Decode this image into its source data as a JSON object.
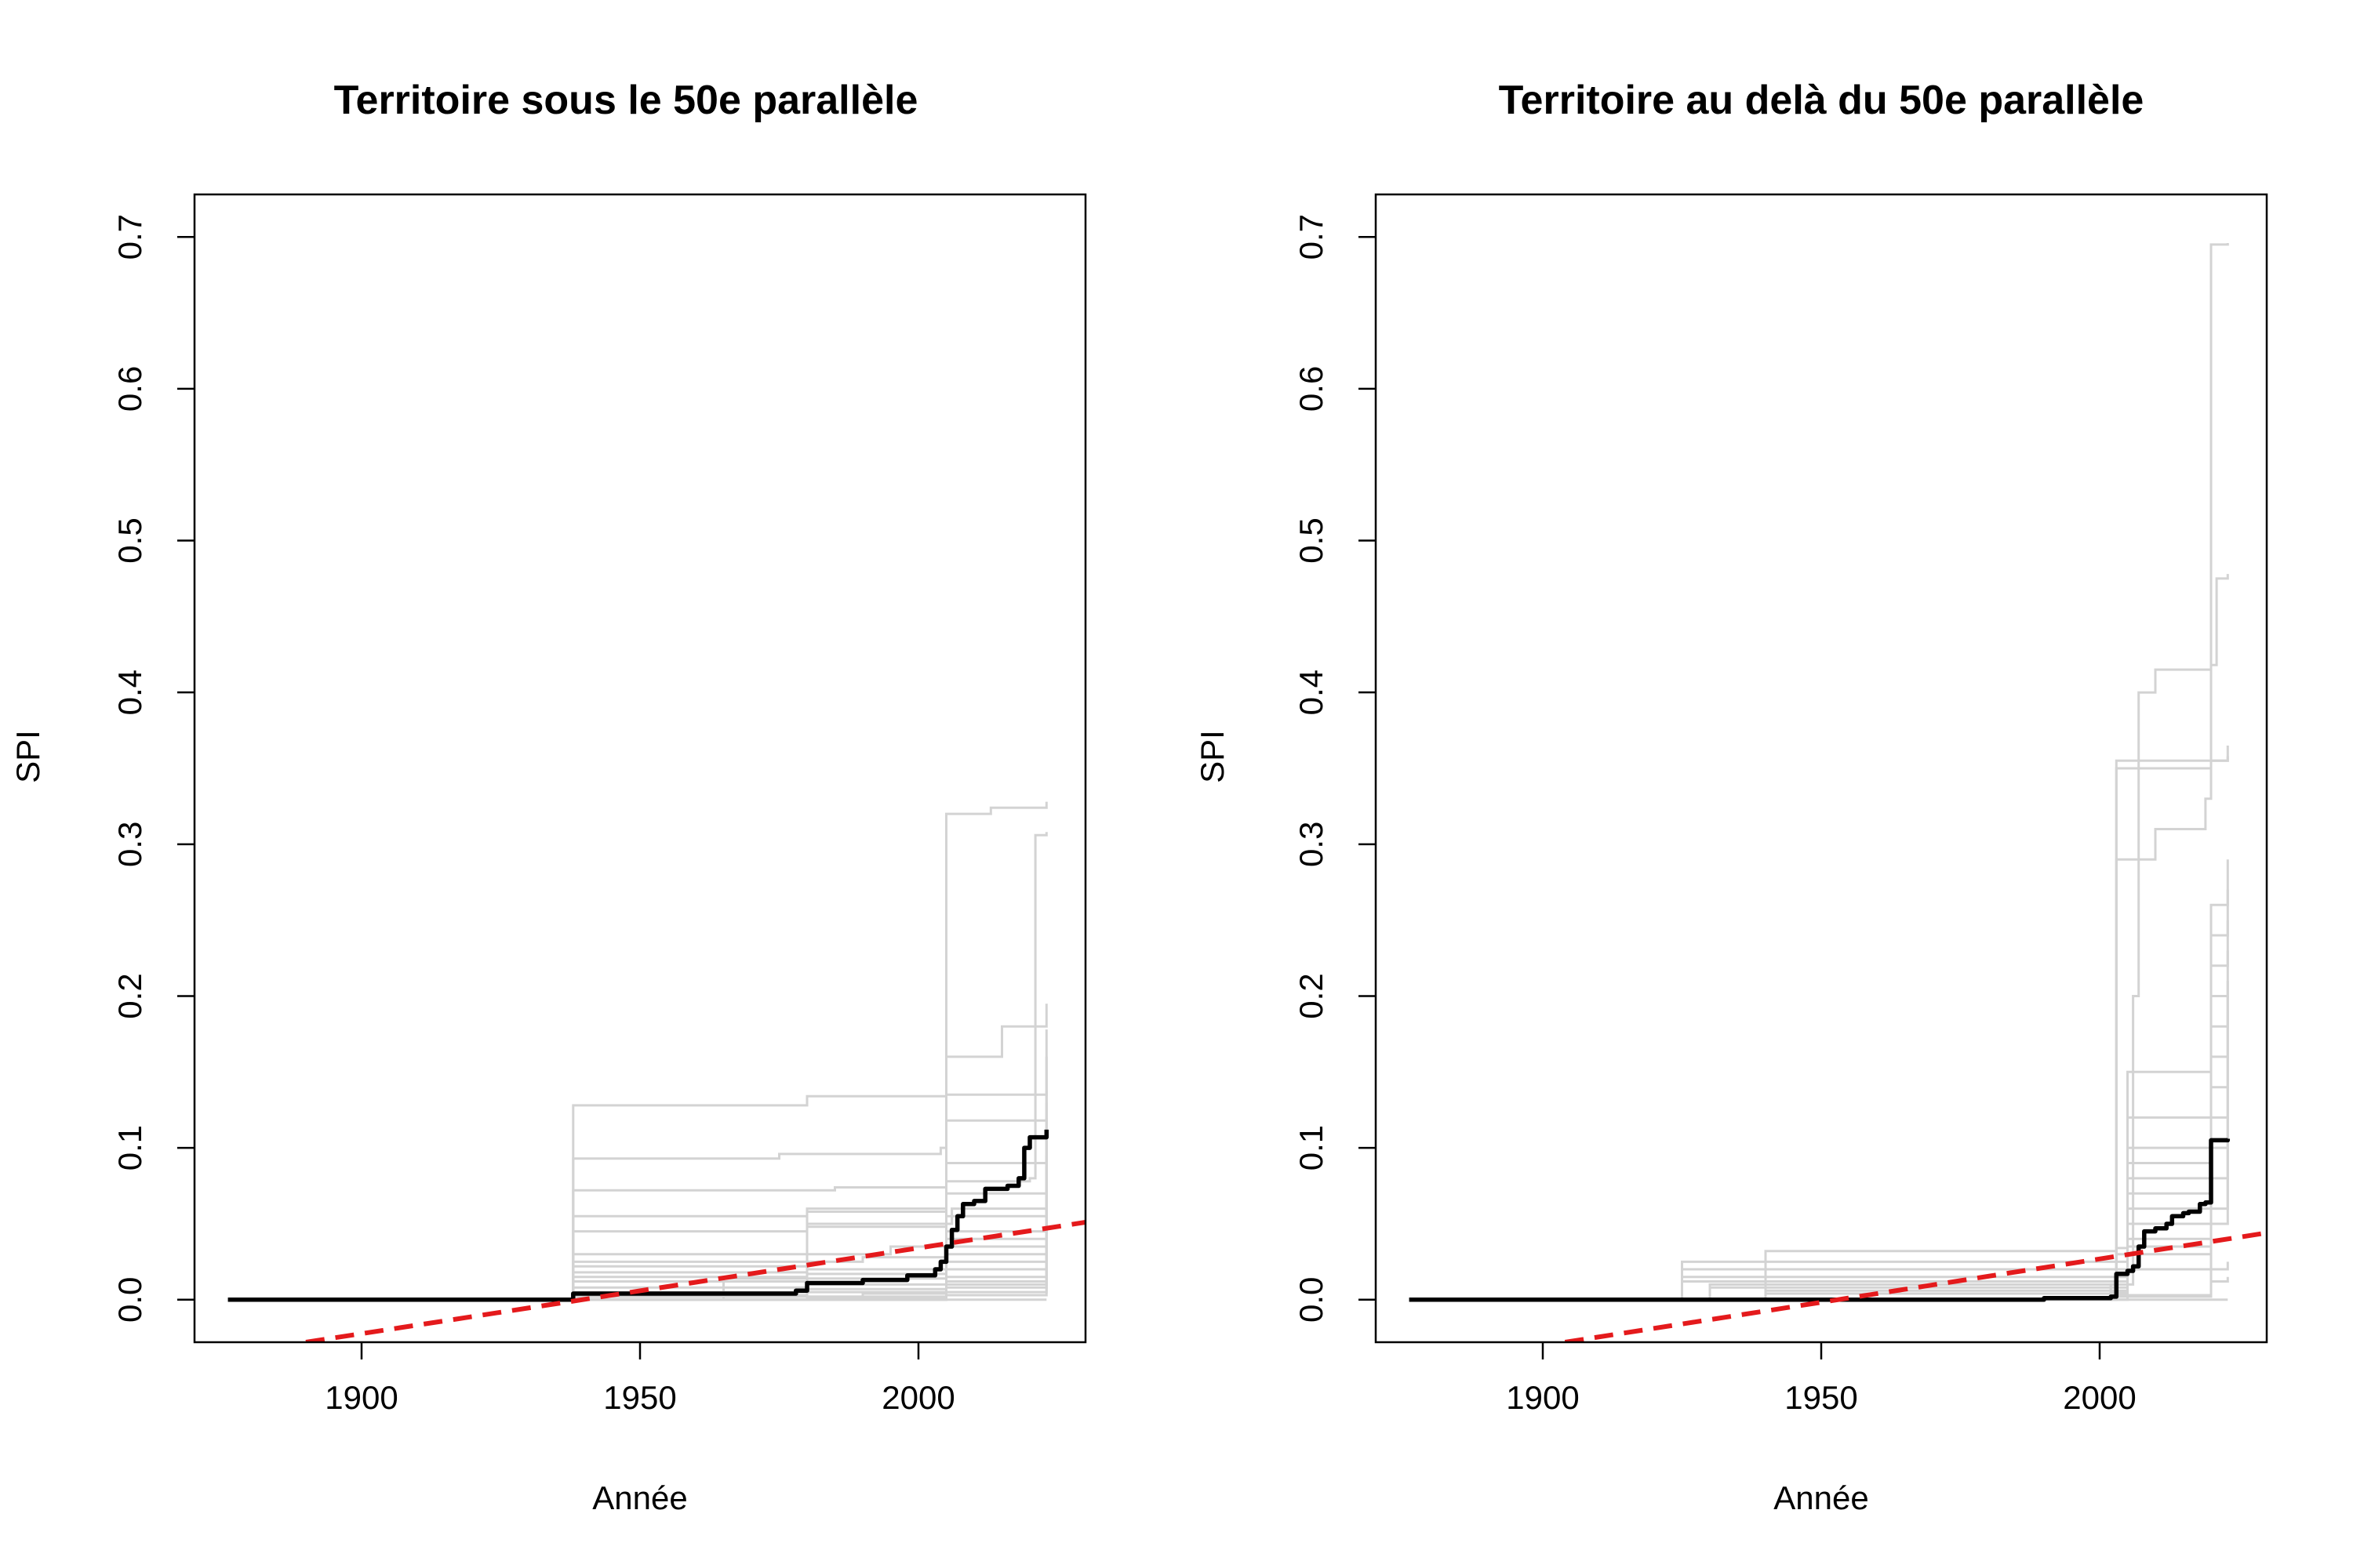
{
  "chart_data": [
    {
      "type": "line",
      "title": "Territoire sous le 50e parallèle",
      "xlabel": "Année",
      "ylabel": "SPI",
      "xlim": [
        1870,
        2030
      ],
      "ylim": [
        -0.028,
        0.728
      ],
      "xticks": [
        "1900",
        "1950",
        "2000"
      ],
      "yticks": [
        "0.0",
        "0.1",
        "0.2",
        "0.3",
        "0.4",
        "0.5",
        "0.6",
        "0.7"
      ],
      "grid": false,
      "colors": {
        "mean": "#000000",
        "trend": "#e41a1c",
        "members": "#d3d3d3"
      },
      "series": [
        {
          "role": "mean",
          "x": [
            1876,
            1937,
            1938,
            1960,
            1978,
            1980,
            1990,
            1998,
            2003,
            2004,
            2005,
            2006,
            2007,
            2008,
            2010,
            2012,
            2016,
            2018,
            2019,
            2020,
            2023
          ],
          "y": [
            0,
            0,
            0.004,
            0.004,
            0.006,
            0.011,
            0.013,
            0.016,
            0.02,
            0.025,
            0.035,
            0.046,
            0.055,
            0.063,
            0.065,
            0.073,
            0.075,
            0.08,
            0.1,
            0.107,
            0.112
          ]
        },
        {
          "role": "trend",
          "x": [
            1890,
            2030
          ],
          "y": [
            -0.028,
            0.051
          ]
        },
        {
          "role": "members",
          "lines": [
            {
              "x": [
                1876,
                1937,
                1938,
                1980,
                2005,
                2023
              ],
              "y": [
                0,
                0,
                0.128,
                0.134,
                0.135,
                0.138
              ]
            },
            {
              "x": [
                1876,
                1937,
                1938,
                1975,
                2004,
                2005,
                2013,
                2023
              ],
              "y": [
                0,
                0,
                0.093,
                0.096,
                0.1,
                0.32,
                0.324,
                0.328
              ]
            },
            {
              "x": [
                1876,
                1937,
                1938,
                1985,
                2005,
                2020,
                2021,
                2023
              ],
              "y": [
                0,
                0,
                0.072,
                0.074,
                0.078,
                0.08,
                0.306,
                0.308
              ]
            },
            {
              "x": [
                1876,
                1937,
                1938,
                1980,
                2005,
                2015,
                2023
              ],
              "y": [
                0,
                0,
                0.055,
                0.058,
                0.16,
                0.18,
                0.195
              ]
            },
            {
              "x": [
                1876,
                1937,
                1938,
                1980,
                2005,
                2023
              ],
              "y": [
                0,
                0,
                0.045,
                0.048,
                0.118,
                0.178
              ]
            },
            {
              "x": [
                1876,
                1960,
                1965,
                1980,
                2005,
                2023
              ],
              "y": [
                0,
                0,
                0.014,
                0.06,
                0.09,
                0.16
              ]
            },
            {
              "x": [
                1876,
                1937,
                1938,
                1995,
                2005,
                2023
              ],
              "y": [
                0,
                0,
                0.03,
                0.035,
                0.07,
                0.13
              ]
            },
            {
              "x": [
                1876,
                1937,
                1938,
                1990,
                2005,
                2023
              ],
              "y": [
                0,
                0,
                0.025,
                0.028,
                0.055,
                0.12
              ]
            },
            {
              "x": [
                1876,
                1937,
                1938,
                1980,
                2006,
                2023
              ],
              "y": [
                0,
                0,
                0.022,
                0.05,
                0.06,
                0.105
              ]
            },
            {
              "x": [
                1876,
                1937,
                1938,
                1980,
                2005,
                2023
              ],
              "y": [
                0,
                0,
                0.018,
                0.02,
                0.045,
                0.095
              ]
            },
            {
              "x": [
                1876,
                1937,
                1938,
                1980,
                2005,
                2023
              ],
              "y": [
                0,
                0,
                0.015,
                0.017,
                0.04,
                0.088
              ]
            },
            {
              "x": [
                1876,
                1937,
                1938,
                1980,
                2005,
                2023
              ],
              "y": [
                0,
                0,
                0.012,
                0.014,
                0.035,
                0.08
              ]
            },
            {
              "x": [
                1876,
                1937,
                1938,
                1980,
                2005,
                2023
              ],
              "y": [
                0,
                0,
                0.008,
                0.01,
                0.03,
                0.072
              ]
            },
            {
              "x": [
                1876,
                1937,
                1938,
                1980,
                2005,
                2023
              ],
              "y": [
                0,
                0,
                0.005,
                0.007,
                0.025,
                0.066
              ]
            },
            {
              "x": [
                1876,
                1937,
                1938,
                1980,
                2005,
                2023
              ],
              "y": [
                0,
                0,
                0.003,
                0.005,
                0.02,
                0.06
              ]
            },
            {
              "x": [
                1876,
                1937,
                1938,
                1990,
                2005,
                2023
              ],
              "y": [
                0,
                0,
                0.002,
                0.004,
                0.015,
                0.05
              ]
            },
            {
              "x": [
                1876,
                1980,
                2005,
                2023
              ],
              "y": [
                0,
                0.002,
                0.012,
                0.042
              ]
            },
            {
              "x": [
                1876,
                1980,
                2005,
                2023
              ],
              "y": [
                0,
                0.001,
                0.01,
                0.035
              ]
            },
            {
              "x": [
                1876,
                2005,
                2023
              ],
              "y": [
                0,
                0.008,
                0.028
              ]
            },
            {
              "x": [
                1876,
                2005,
                2023
              ],
              "y": [
                0,
                0.005,
                0.02
              ]
            },
            {
              "x": [
                1876,
                2005,
                2023
              ],
              "y": [
                0,
                0.003,
                0.012
              ]
            },
            {
              "x": [
                1876,
                2023
              ],
              "y": [
                0,
                0
              ]
            }
          ]
        }
      ]
    },
    {
      "type": "line",
      "title": "Territoire au delà du 50e parallèle",
      "xlabel": "Année",
      "ylabel": "SPI",
      "xlim": [
        1870,
        2030
      ],
      "ylim": [
        -0.028,
        0.728
      ],
      "xticks": [
        "1900",
        "1950",
        "2000"
      ],
      "yticks": [
        "0.0",
        "0.1",
        "0.2",
        "0.3",
        "0.4",
        "0.5",
        "0.6",
        "0.7"
      ],
      "grid": false,
      "colors": {
        "mean": "#000000",
        "trend": "#e41a1c",
        "members": "#d3d3d3"
      },
      "series": [
        {
          "role": "mean",
          "x": [
            1876,
            1990,
            2002,
            2003,
            2005,
            2006,
            2007,
            2008,
            2010,
            2012,
            2013,
            2015,
            2016,
            2018,
            2019,
            2020,
            2023
          ],
          "y": [
            0,
            0.001,
            0.002,
            0.017,
            0.019,
            0.022,
            0.035,
            0.045,
            0.047,
            0.05,
            0.055,
            0.057,
            0.058,
            0.063,
            0.064,
            0.105,
            0.106
          ]
        },
        {
          "role": "trend",
          "x": [
            1904,
            2030
          ],
          "y": [
            -0.028,
            0.044
          ]
        },
        {
          "role": "members",
          "lines": [
            {
              "x": [
                1876,
                1920,
                2002,
                2003,
                2020,
                2023
              ],
              "y": [
                0,
                0,
                0.01,
                0.35,
                0.355,
                0.365
              ]
            },
            {
              "x": [
                1876,
                2000,
                2002,
                2003,
                2010,
                2019,
                2020,
                2023
              ],
              "y": [
                0,
                0,
                0.01,
                0.29,
                0.31,
                0.33,
                0.695,
                0.696
              ]
            },
            {
              "x": [
                1876,
                2005,
                2006,
                2007,
                2009,
                2010,
                2020,
                2021,
                2023
              ],
              "y": [
                0,
                0.01,
                0.2,
                0.4,
                0.4,
                0.415,
                0.418,
                0.475,
                0.478
              ]
            },
            {
              "x": [
                1876,
                2002,
                2003,
                2023
              ],
              "y": [
                0,
                0.005,
                0.355,
                0.358
              ]
            },
            {
              "x": [
                1876,
                1938,
                1940,
                2003,
                2005,
                2020,
                2023
              ],
              "y": [
                0,
                0,
                0.032,
                0.034,
                0.15,
                0.26,
                0.29
              ]
            },
            {
              "x": [
                1876,
                1920,
                1925,
                2003,
                2005,
                2020,
                2023
              ],
              "y": [
                0,
                0,
                0.025,
                0.03,
                0.12,
                0.24,
                0.27
              ]
            },
            {
              "x": [
                1876,
                1920,
                1925,
                2003,
                2005,
                2020,
                2023
              ],
              "y": [
                0,
                0,
                0.02,
                0.025,
                0.1,
                0.22,
                0.25
              ]
            },
            {
              "x": [
                1876,
                1925,
                2003,
                2005,
                2020,
                2023
              ],
              "y": [
                0,
                0.015,
                0.02,
                0.09,
                0.2,
                0.23
              ]
            },
            {
              "x": [
                1876,
                1925,
                2003,
                2005,
                2020,
                2023
              ],
              "y": [
                0,
                0.012,
                0.018,
                0.08,
                0.18,
                0.21
              ]
            },
            {
              "x": [
                1876,
                1930,
                2003,
                2005,
                2020,
                2023
              ],
              "y": [
                0,
                0.01,
                0.015,
                0.07,
                0.16,
                0.2
              ]
            },
            {
              "x": [
                1876,
                1930,
                2003,
                2005,
                2020,
                2023
              ],
              "y": [
                0,
                0.008,
                0.012,
                0.06,
                0.14,
                0.19
              ]
            },
            {
              "x": [
                1876,
                1940,
                2003,
                2005,
                2020,
                2023
              ],
              "y": [
                0,
                0.006,
                0.01,
                0.05,
                0.12,
                0.16
              ]
            },
            {
              "x": [
                1876,
                1940,
                2003,
                2005,
                2020,
                2023
              ],
              "y": [
                0,
                0.004,
                0.008,
                0.04,
                0.1,
                0.14
              ]
            },
            {
              "x": [
                1876,
                2003,
                2005,
                2020,
                2023
              ],
              "y": [
                0,
                0.006,
                0.035,
                0.08,
                0.12
              ]
            },
            {
              "x": [
                1876,
                2003,
                2005,
                2020,
                2023
              ],
              "y": [
                0,
                0.005,
                0.03,
                0.06,
                0.1
              ]
            },
            {
              "x": [
                1876,
                2003,
                2005,
                2020,
                2023
              ],
              "y": [
                0,
                0.004,
                0.02,
                0.05,
                0.08
              ]
            },
            {
              "x": [
                1876,
                2003,
                2020,
                2023
              ],
              "y": [
                0,
                0.003,
                0.02,
                0.025
              ]
            },
            {
              "x": [
                1876,
                2003,
                2020,
                2023
              ],
              "y": [
                0,
                0.002,
                0.012,
                0.015
              ]
            },
            {
              "x": [
                1876,
                2023
              ],
              "y": [
                0,
                0
              ]
            }
          ]
        }
      ]
    }
  ]
}
